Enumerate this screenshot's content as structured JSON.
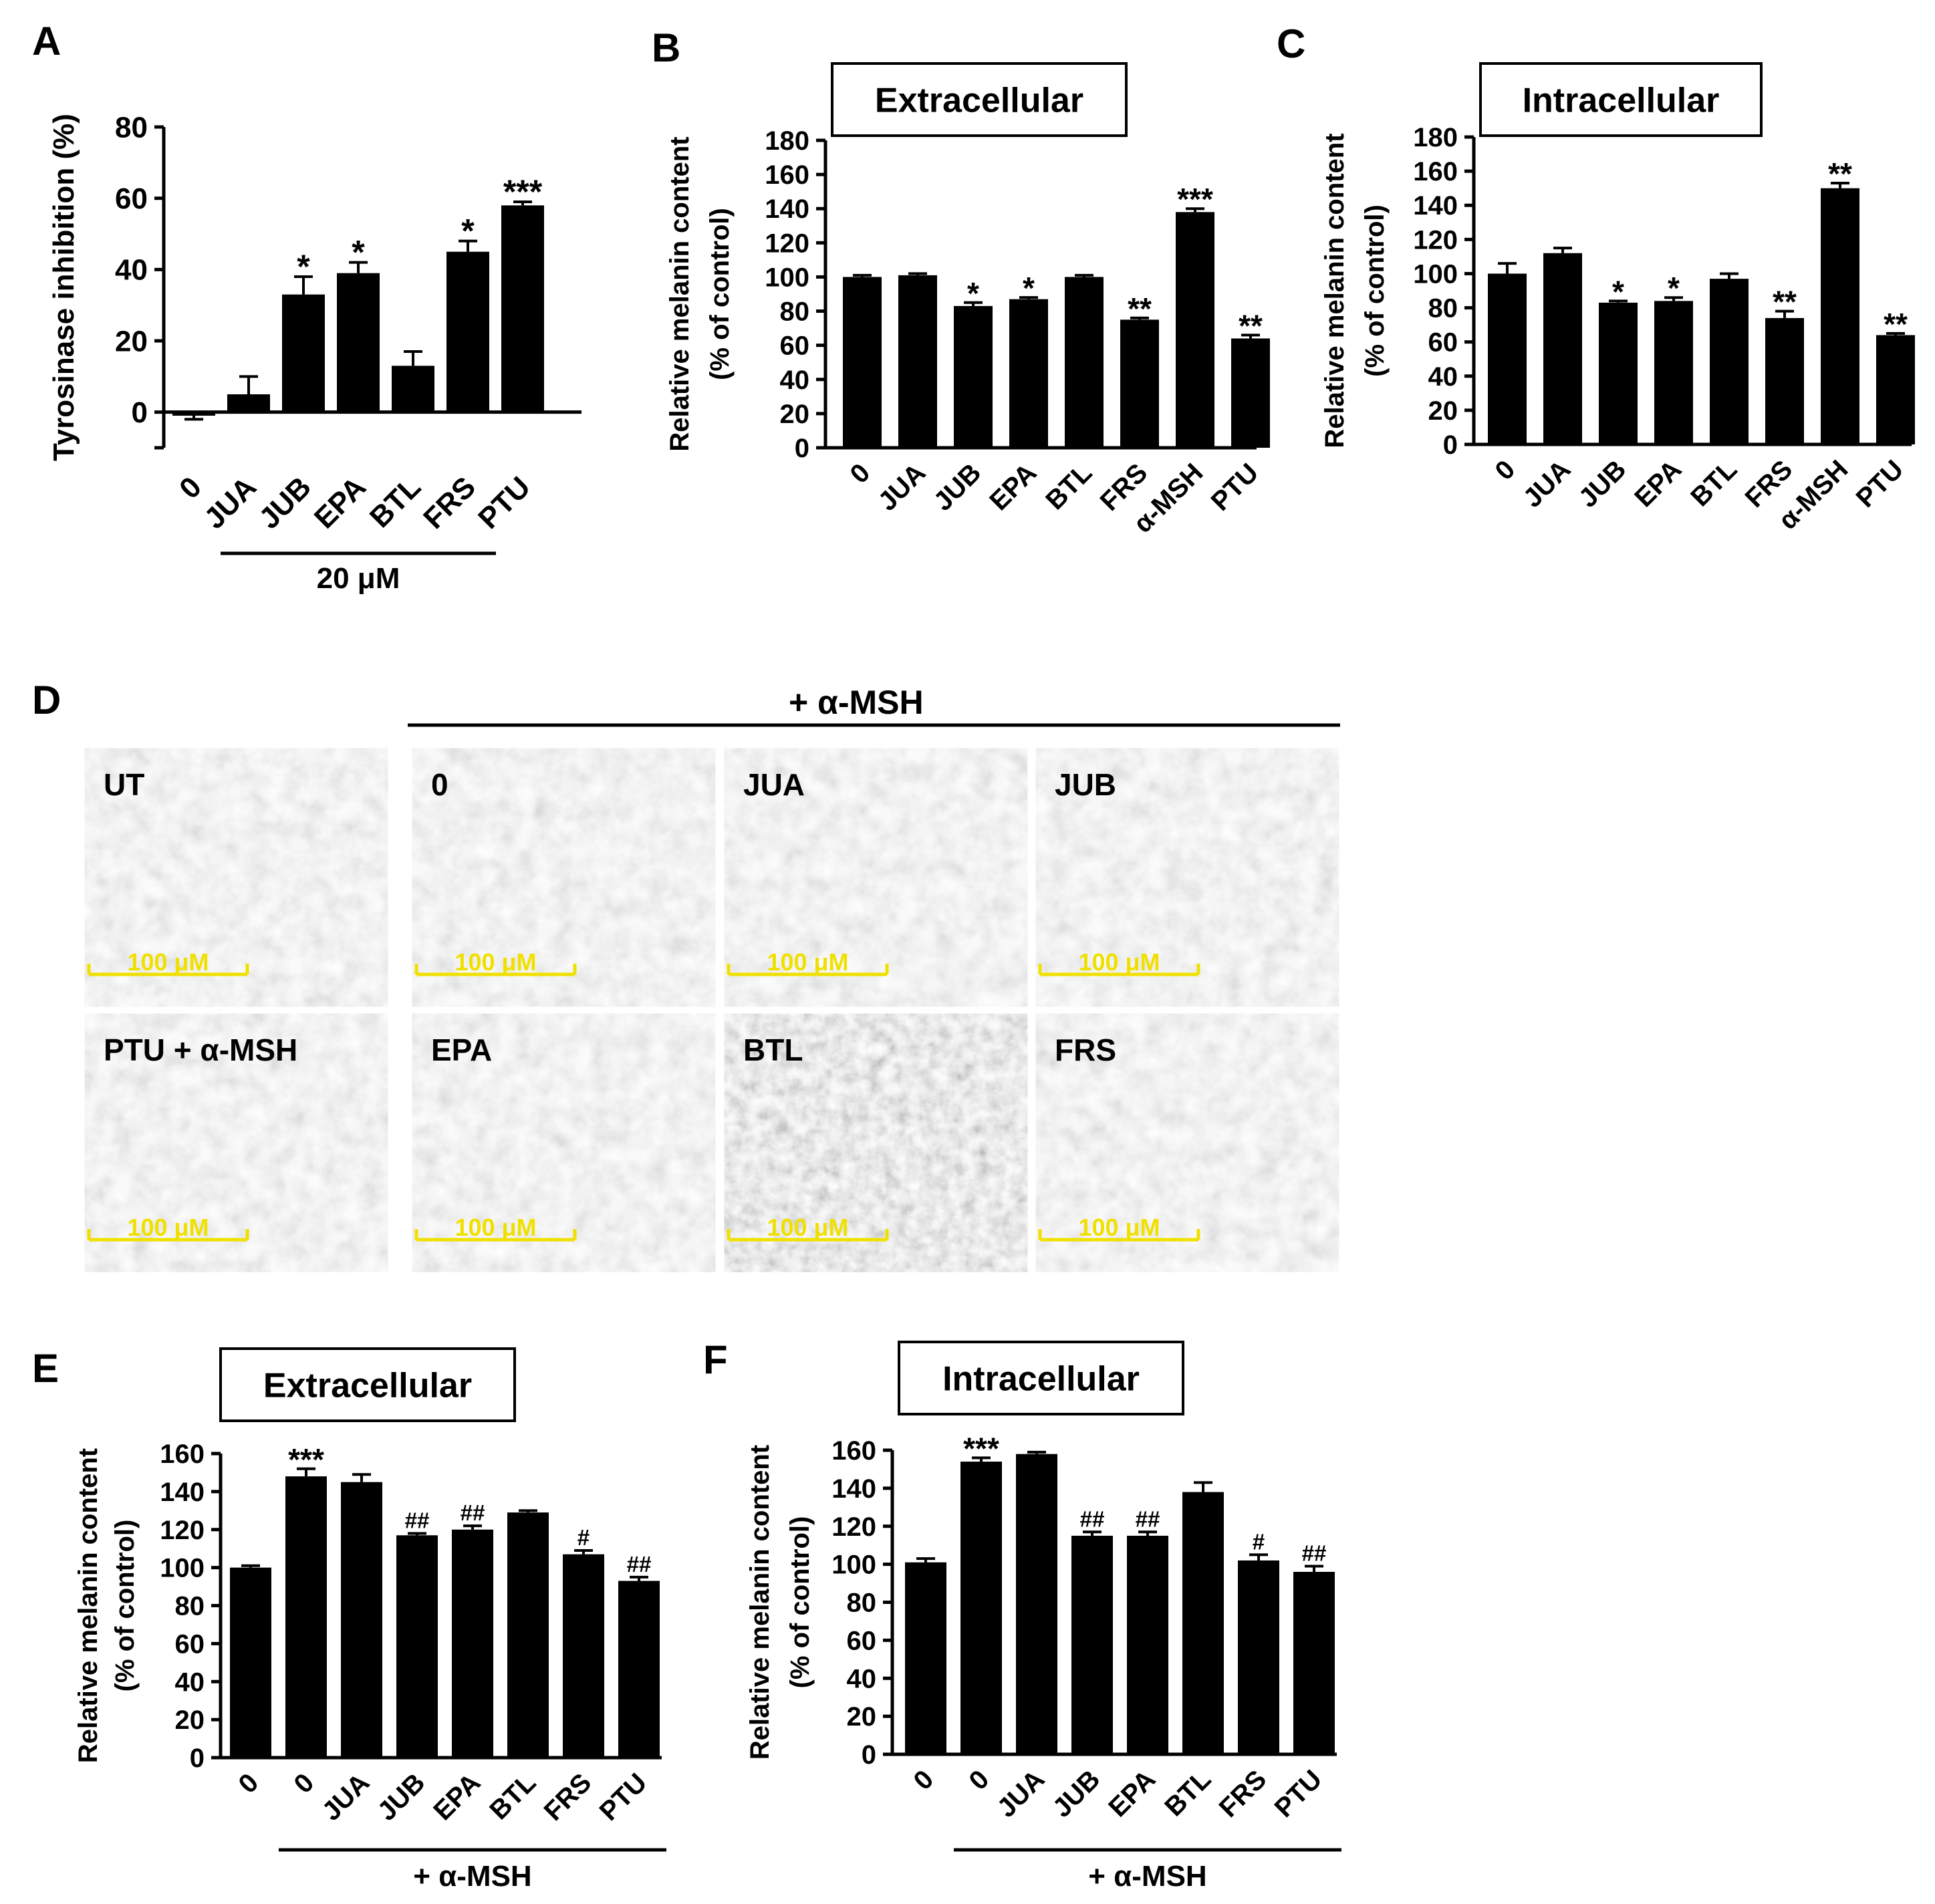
{
  "chart_data": [
    {
      "panel": "A",
      "type": "bar",
      "title": "",
      "ylabel": "Tyrosinase inhibition (%)",
      "ylim": [
        -10,
        80
      ],
      "yticks": [
        0,
        20,
        40,
        60,
        80
      ],
      "categories": [
        "0",
        "JUA",
        "JUB",
        "EPA",
        "BTL",
        "FRS",
        "PTU"
      ],
      "values": [
        -1,
        5,
        33,
        39,
        13,
        45,
        58
      ],
      "errors": [
        1,
        5,
        5,
        3,
        4,
        3,
        1
      ],
      "annotations": [
        "",
        "",
        "*",
        "*",
        "",
        "*",
        "***"
      ],
      "group_label": "20 μM",
      "group_span": [
        1,
        5
      ]
    },
    {
      "panel": "B",
      "type": "bar",
      "title": "Extracellular",
      "ylabel_line1": "Relative melanin content",
      "ylabel_line2": "(% of control)",
      "ylim": [
        0,
        180
      ],
      "yticks": [
        0,
        20,
        40,
        60,
        80,
        100,
        120,
        140,
        160,
        180
      ],
      "categories": [
        "0",
        "JUA",
        "JUB",
        "EPA",
        "BTL",
        "FRS",
        "α-MSH",
        "PTU"
      ],
      "values": [
        100,
        101,
        83,
        87,
        100,
        75,
        138,
        64
      ],
      "errors": [
        1,
        1,
        2,
        1,
        1,
        1,
        2,
        2
      ],
      "annotations": [
        "",
        "",
        "*",
        "*",
        "",
        "**",
        "***",
        "**"
      ]
    },
    {
      "panel": "C",
      "type": "bar",
      "title": "Intracellular",
      "ylabel_line1": "Relative melanin content",
      "ylabel_line2": "(% of control)",
      "ylim": [
        0,
        180
      ],
      "yticks": [
        0,
        20,
        40,
        60,
        80,
        100,
        120,
        140,
        160,
        180
      ],
      "categories": [
        "0",
        "JUA",
        "JUB",
        "EPA",
        "BTL",
        "FRS",
        "α-MSH",
        "PTU"
      ],
      "values": [
        100,
        112,
        83,
        84,
        97,
        74,
        150,
        64
      ],
      "errors": [
        6,
        3,
        1,
        2,
        3,
        4,
        3,
        1
      ],
      "annotations": [
        "",
        "",
        "*",
        "*",
        "",
        "**",
        "**",
        "**"
      ]
    },
    {
      "panel": "E",
      "type": "bar",
      "title": "Extracellular",
      "ylabel_line1": "Relative melanin content",
      "ylabel_line2": "(% of control)",
      "ylim": [
        0,
        160
      ],
      "yticks": [
        0,
        20,
        40,
        60,
        80,
        100,
        120,
        140,
        160
      ],
      "categories": [
        "0",
        "0",
        "JUA",
        "JUB",
        "EPA",
        "BTL",
        "FRS",
        "PTU"
      ],
      "values": [
        100,
        148,
        145,
        117,
        120,
        129,
        107,
        93
      ],
      "errors": [
        1,
        4,
        4,
        1,
        2,
        1,
        2,
        2
      ],
      "annotations": [
        "",
        "***",
        "",
        "##",
        "##",
        "",
        "#",
        "##"
      ],
      "group_label": "+ α-MSH",
      "group_span": [
        1,
        7
      ]
    },
    {
      "panel": "F",
      "type": "bar",
      "title": "Intracellular",
      "ylabel_line1": "Relative melanin content",
      "ylabel_line2": "(% of control)",
      "ylim": [
        0,
        160
      ],
      "yticks": [
        0,
        20,
        40,
        60,
        80,
        100,
        120,
        140,
        160
      ],
      "categories": [
        "0",
        "0",
        "JUA",
        "JUB",
        "EPA",
        "BTL",
        "FRS",
        "PTU"
      ],
      "values": [
        101,
        154,
        158,
        115,
        115,
        138,
        102,
        96
      ],
      "errors": [
        2,
        2,
        1,
        2,
        2,
        5,
        3,
        3
      ],
      "annotations": [
        "",
        "***",
        "",
        "##",
        "##",
        "",
        "#",
        "##"
      ],
      "group_label": "+ α-MSH",
      "group_span": [
        1,
        7
      ]
    }
  ],
  "panel_labels": [
    "A",
    "B",
    "C",
    "D",
    "E",
    "F"
  ],
  "micrographs": {
    "header": "+ α-MSH",
    "scale_bar": "100 μM",
    "scale_color": "#f0e000",
    "tiles": [
      "UT",
      "0",
      "JUA",
      "JUB",
      "PTU + α-MSH",
      "EPA",
      "BTL",
      "FRS"
    ]
  }
}
